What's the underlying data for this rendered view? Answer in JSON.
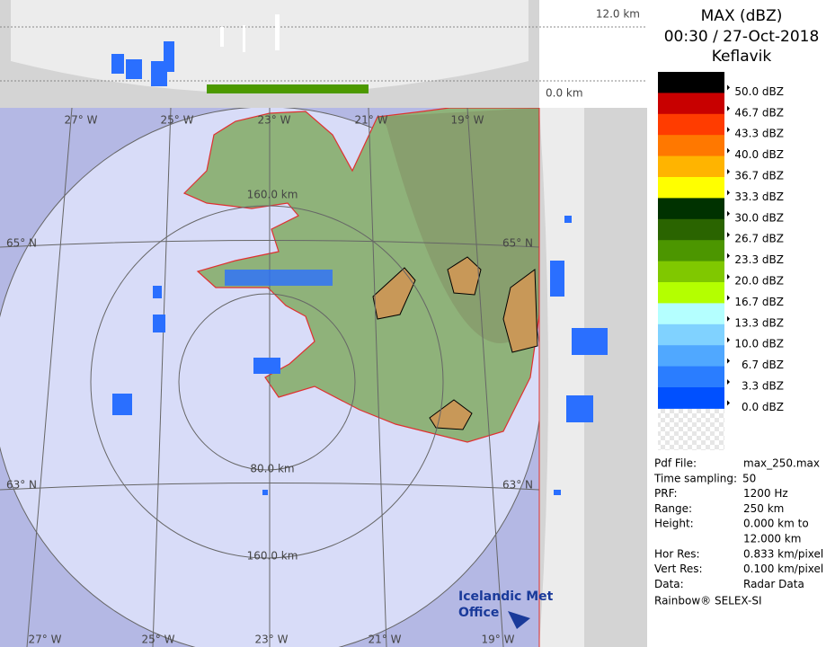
{
  "header": {
    "title": "MAX (dBZ)",
    "time": "00:30 / 27-Oct-2018",
    "site": "Keflavik"
  },
  "legend": [
    {
      "label": "50.0 dBZ",
      "color": "#000000"
    },
    {
      "label": "46.7 dBZ",
      "color": "#c80000"
    },
    {
      "label": "43.3 dBZ",
      "color": "#ff3c00"
    },
    {
      "label": "40.0 dBZ",
      "color": "#ff7800"
    },
    {
      "label": "36.7 dBZ",
      "color": "#ffb400"
    },
    {
      "label": "33.3 dBZ",
      "color": "#ffff00"
    },
    {
      "label": "30.0 dBZ",
      "color": "#003200"
    },
    {
      "label": "26.7 dBZ",
      "color": "#2a6400"
    },
    {
      "label": "23.3 dBZ",
      "color": "#4c9600"
    },
    {
      "label": "20.0 dBZ",
      "color": "#80c800"
    },
    {
      "label": "16.7 dBZ",
      "color": "#b4ff00"
    },
    {
      "label": "13.3 dBZ",
      "color": "#b4ffff"
    },
    {
      "label": "10.0 dBZ",
      "color": "#80d2ff"
    },
    {
      "label": "6.7 dBZ",
      "color": "#50a8ff"
    },
    {
      "label": "3.3 dBZ",
      "color": "#2a7dff"
    },
    {
      "label": "0.0 dBZ",
      "color": "#0050ff"
    }
  ],
  "info": [
    [
      "Pdf File:",
      "max_250.max"
    ],
    [
      "Time sampling:",
      "50"
    ],
    [
      "PRF:",
      "1200 Hz"
    ],
    [
      "Range:",
      "250 km"
    ],
    [
      "Height:",
      "0.000 km to"
    ],
    [
      "",
      "12.000 km"
    ],
    [
      "Hor Res:",
      "0.833 km/pixel"
    ],
    [
      "Vert Res:",
      "0.100 km/pixel"
    ],
    [
      "Data:",
      "Radar Data"
    ]
  ],
  "footer": "Rainbow® SELEX-SI",
  "map": {
    "lon_top": [
      "27° W",
      "25° W",
      "23° W",
      "21° W",
      "19° W"
    ],
    "lon_bottom": [
      "27° W",
      "25° W",
      "23° W",
      "21° W",
      "19° W"
    ],
    "lat_left": [
      "65° N",
      "63° N"
    ],
    "lat_right": [
      "65° N",
      "63° N"
    ],
    "ring_labels": [
      "160.0 km",
      "80.0 km",
      "160.0 km"
    ],
    "height_labels": [
      "12.0 km",
      "0.0 km"
    ],
    "logo": [
      "Icelandic Met",
      "Office"
    ]
  }
}
